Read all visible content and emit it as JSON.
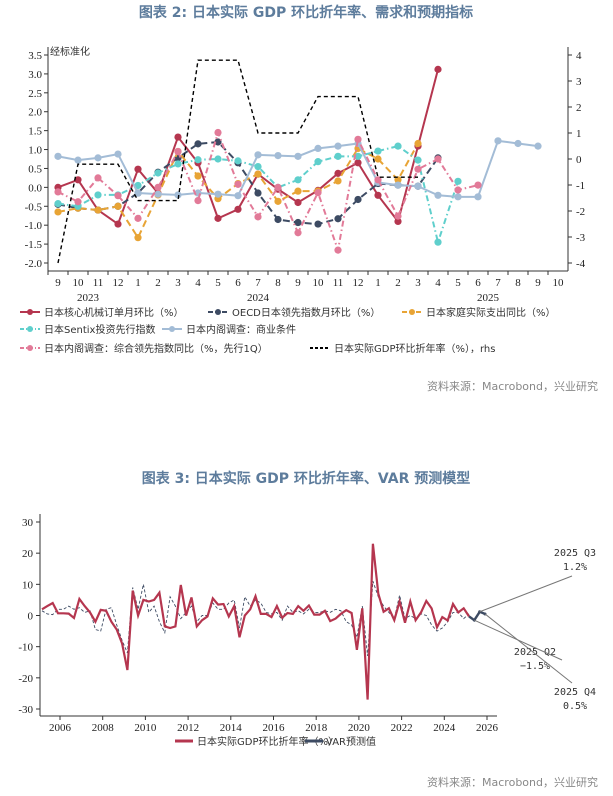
{
  "titles": {
    "chart2": "图表 2:  日本实际 GDP 环比折年率、需求和预期指标",
    "chart3": "图表 3:  日本实际 GDP 环比折年率、VAR 预测模型"
  },
  "source": "资料来源：Macrobond，兴业研究",
  "chart_data": [
    {
      "type": "line",
      "title": "图表 2:  日本实际 GDP 环比折年率、需求和预期指标",
      "left_axis_label": "经标准化",
      "ylim": [
        -2.0,
        3.5
      ],
      "y2lim": [
        -4,
        4
      ],
      "yticks": [
        "3.5",
        "3.0",
        "2.5",
        "2.0",
        "1.5",
        "1.0",
        "0.5",
        "0.0",
        "-0.5",
        "-1.0",
        "-1.5",
        "-2.0"
      ],
      "y2ticks": [
        "4",
        "3",
        "2",
        "1",
        "0",
        "-1",
        "-2",
        "-3",
        "-4"
      ],
      "x": [
        "9",
        "10",
        "11",
        "12",
        "1",
        "2",
        "3",
        "4",
        "5",
        "6",
        "7",
        "8",
        "9",
        "10",
        "11",
        "12",
        "1",
        "2",
        "3",
        "4",
        "5",
        "6",
        "7",
        "8",
        "9",
        "10"
      ],
      "years": [
        "2023",
        "2024",
        "2025"
      ],
      "grid": false,
      "legend": "bottom",
      "series": [
        {
          "name": "日本核心机械订单月环比（%）",
          "color": "#b5364f",
          "style": "solid",
          "axis": "left",
          "values": [
            0.0,
            0.2,
            -0.6,
            -0.97,
            0.48,
            -0.15,
            1.33,
            0.65,
            -0.82,
            -0.58,
            0.35,
            -0.05,
            -0.4,
            -0.08,
            0.37,
            0.65,
            -0.21,
            -0.9,
            1.09,
            3.12,
            null,
            null,
            null,
            null,
            null,
            null
          ]
        },
        {
          "name": "OECD日本领先指数月环比（%）",
          "color": "#3d4b63",
          "style": "dash",
          "axis": "left",
          "values": [
            -0.45,
            -0.55,
            -0.6,
            -0.5,
            -0.15,
            0.4,
            0.78,
            1.15,
            1.2,
            0.65,
            -0.15,
            -0.85,
            -0.93,
            -0.97,
            -0.83,
            -0.32,
            0.1,
            0.06,
            0.03,
            0.78,
            null,
            null,
            null,
            null,
            null,
            null
          ]
        },
        {
          "name": "日本家庭实际支出同比（%）",
          "color": "#e8a435",
          "style": "dash",
          "axis": "left",
          "values": [
            -0.65,
            -0.55,
            -0.6,
            -0.5,
            -1.33,
            -0.2,
            0.95,
            0.3,
            -0.3,
            0.1,
            0.35,
            -0.37,
            -0.1,
            -0.1,
            0.17,
            1.03,
            0.75,
            0.2,
            1.16,
            null,
            null,
            null,
            null,
            null,
            null,
            null
          ]
        },
        {
          "name": "日本Sentix投资先行指数",
          "color": "#5fcfcc",
          "style": "dashdot",
          "axis": "left",
          "values": [
            -0.43,
            -0.5,
            -0.2,
            -0.2,
            0.05,
            0.38,
            0.62,
            0.73,
            0.75,
            0.7,
            0.55,
            0.0,
            0.2,
            0.68,
            0.82,
            0.82,
            0.96,
            1.09,
            0.72,
            -1.45,
            0.16,
            null,
            null,
            null,
            null,
            null
          ]
        },
        {
          "name": "日本内阁调查：商业条件",
          "color": "#a3bcd6",
          "style": "solid",
          "axis": "left",
          "values": [
            0.82,
            0.72,
            0.78,
            0.88,
            -0.15,
            -0.18,
            -0.2,
            -0.15,
            -0.18,
            -0.22,
            0.86,
            0.84,
            0.82,
            1.03,
            1.09,
            1.16,
            0.13,
            0.06,
            0.03,
            -0.21,
            -0.25,
            -0.25,
            1.23,
            1.16,
            1.09,
            null
          ]
        },
        {
          "name": "日本内阁调查：综合领先指数同比（%，先行1Q）",
          "color": "#e27a98",
          "style": "dashdot",
          "axis": "left",
          "values": [
            -0.12,
            -0.38,
            0.25,
            -0.22,
            -0.82,
            0.0,
            0.95,
            -0.35,
            1.45,
            0.08,
            -0.78,
            0.0,
            -1.2,
            -0.14,
            -1.66,
            1.27,
            0.2,
            -0.76,
            0.48,
            0.75,
            -0.07,
            0.06,
            null,
            null,
            null,
            null
          ]
        },
        {
          "name": "日本实际GDP环比折年率（%），rhs",
          "color": "#000000",
          "style": "shortdash",
          "axis": "right",
          "values": [
            -4,
            -0.2,
            -0.2,
            -0.2,
            -1.6,
            -1.6,
            -1.6,
            3.8,
            3.8,
            3.8,
            1.0,
            1.0,
            1.0,
            2.4,
            2.4,
            2.4,
            -0.7,
            -0.7,
            -0.7,
            null,
            null,
            null,
            null,
            null,
            null,
            null
          ]
        }
      ]
    },
    {
      "type": "line",
      "title": "图表 3:  日本实际 GDP 环比折年率、VAR 预测模型",
      "ylim": [
        -30,
        30
      ],
      "yticks": [
        "30",
        "20",
        "10",
        "0",
        "-10",
        "-20",
        "-30"
      ],
      "xticks": [
        "2006",
        "2008",
        "2010",
        "2012",
        "2014",
        "2016",
        "2018",
        "2020",
        "2022",
        "2024",
        "2026"
      ],
      "start": "2005Q1",
      "grid": false,
      "legend": "bottom",
      "series": [
        {
          "name": "日本实际GDP环比折年率（%）",
          "color": "#b5364f",
          "values": [
            2,
            3,
            4,
            0.7,
            0.7,
            0.6,
            -0.8,
            5.3,
            3,
            1,
            -2,
            1.8,
            1.5,
            -2,
            -4.5,
            -9,
            -17.5,
            8,
            0,
            5,
            4.5,
            5,
            7.3,
            -3.5,
            -4,
            -3.5,
            9.8,
            0,
            5.8,
            -3.5,
            -1.5,
            -0.3,
            5.5,
            3.5,
            3.7,
            -0.3,
            3,
            -7,
            0,
            2,
            6.2,
            0.5,
            0.5,
            -0.5,
            3,
            -0.7,
            0.8,
            0.5,
            3,
            1.5,
            3.2,
            0.3,
            0.3,
            1.5,
            -1.8,
            -1,
            0.5,
            1.7,
            0.8,
            -11,
            2.3,
            -27,
            23,
            7,
            1.2,
            2.3,
            -1.5,
            4.5,
            -2.3,
            4.5,
            -1.5,
            1,
            4.7,
            2.3,
            -3.8,
            -0.5,
            -1.6,
            3.7,
            1,
            2.3,
            -0.3
          ]
        },
        {
          "name": "VAR预测值",
          "color": "#3d4b63",
          "fitted": [
            1.5,
            0.5,
            0.3,
            2,
            2,
            3,
            2,
            2.5,
            1,
            1.5,
            -4.5,
            -5,
            2,
            2.5,
            -3,
            -8,
            -12,
            9,
            2,
            10,
            1,
            3,
            -2,
            -5.5,
            6,
            3,
            -1,
            1,
            3,
            -2,
            0,
            0,
            4,
            2,
            2,
            4,
            5,
            -4,
            6,
            3,
            5,
            4,
            1,
            0.5,
            1,
            -1.5,
            3,
            1,
            1.5,
            0.5,
            2,
            1,
            1,
            1.5,
            1,
            2,
            1.5,
            -2,
            -3,
            -7,
            3,
            -13,
            11,
            6,
            3,
            1,
            -1,
            6.5,
            -1,
            0,
            -1,
            0.5,
            0,
            -3,
            -5,
            -4,
            -2,
            1,
            1,
            -1,
            0.5
          ],
          "forecast": {
            "quarters": [
              "2025Q1",
              "2025Q2",
              "2025Q3",
              "2025Q4"
            ],
            "values": [
              -0.3,
              -1.5,
              1.2,
              0.5
            ]
          }
        }
      ],
      "annotations": [
        {
          "line1": "2025 Q3",
          "line2": "1.2%"
        },
        {
          "line1": "2025 Q2",
          "line2": "−1.5%"
        },
        {
          "line1": "2025 Q4",
          "line2": "0.5%"
        }
      ]
    }
  ]
}
